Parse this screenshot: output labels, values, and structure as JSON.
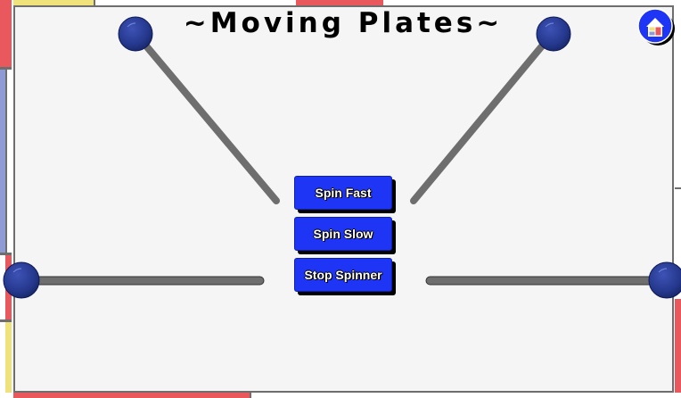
{
  "title": "~Moving Plates~",
  "buttons": {
    "spin_fast": "Spin Fast",
    "spin_slow": "Spin Slow",
    "stop_spinner": "Stop Spinner"
  },
  "icons": {
    "home": "home-icon",
    "plate": "plate-icon"
  },
  "colors": {
    "button": "#1f35f5",
    "plate": "#26398f",
    "pole": "#6e6e6e",
    "frame_red": "#e8585d",
    "frame_blue": "#8e9bd4",
    "frame_yellow": "#efe27a",
    "background": "#f5f5f5"
  }
}
